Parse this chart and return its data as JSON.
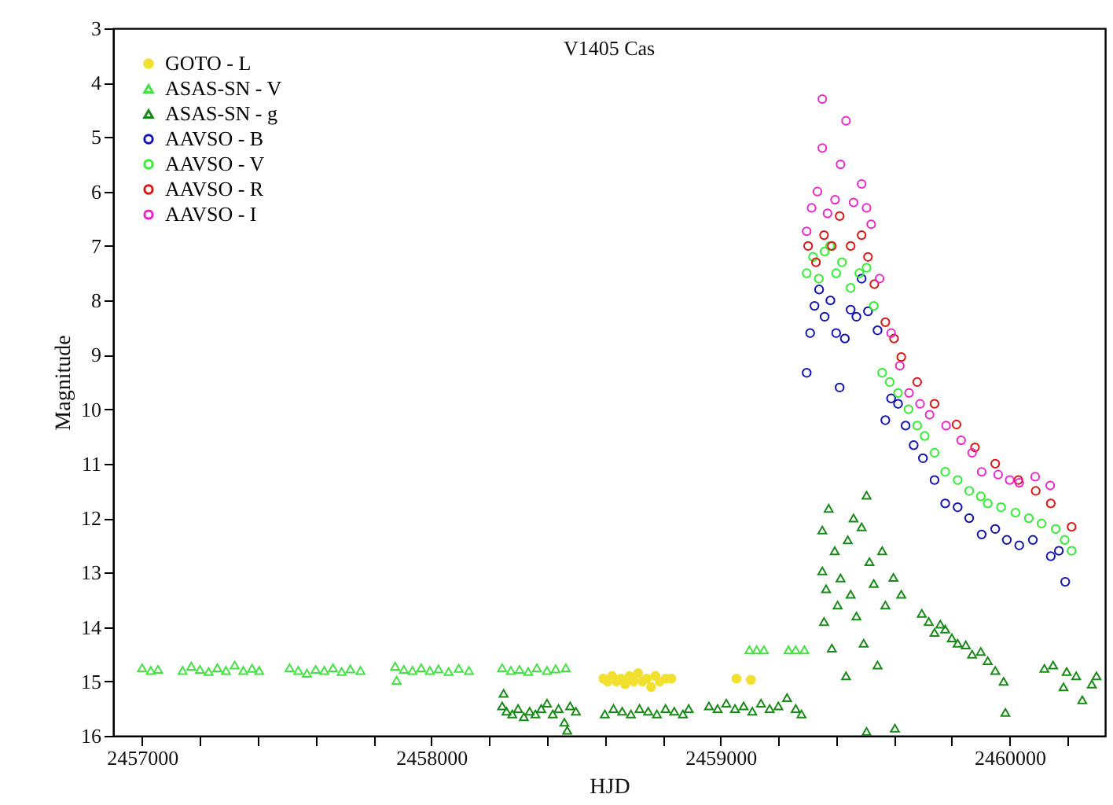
{
  "chart_data": {
    "type": "scatter",
    "title": "V1405 Cas",
    "xlabel": "HJD",
    "ylabel": "Magnitude",
    "xlim": [
      2456900,
      2460330
    ],
    "ylim": [
      16,
      3
    ],
    "xticks": [
      {
        "value": 2457000,
        "label": "2457000"
      },
      {
        "value": 2457200,
        "label": null
      },
      {
        "value": 2457400,
        "label": null
      },
      {
        "value": 2457600,
        "label": null
      },
      {
        "value": 2457800,
        "label": null
      },
      {
        "value": 2458000,
        "label": "2458000"
      },
      {
        "value": 2458200,
        "label": null
      },
      {
        "value": 2458400,
        "label": null
      },
      {
        "value": 2458600,
        "label": null
      },
      {
        "value": 2458800,
        "label": null
      },
      {
        "value": 2459000,
        "label": "2459000"
      },
      {
        "value": 2459200,
        "label": null
      },
      {
        "value": 2459400,
        "label": null
      },
      {
        "value": 2459600,
        "label": null
      },
      {
        "value": 2459800,
        "label": null
      },
      {
        "value": 2460000,
        "label": "2460000"
      },
      {
        "value": 2460200,
        "label": null
      }
    ],
    "yticks": [
      3,
      4,
      5,
      6,
      7,
      8,
      9,
      10,
      11,
      12,
      13,
      14,
      15,
      16
    ],
    "legend": "top left",
    "series": [
      {
        "name": "GOTO - L",
        "color": "#f2e030",
        "marker": "circle",
        "x": [
          2458595,
          2458610,
          2458625,
          2458640,
          2458655,
          2458670,
          2458685,
          2458700,
          2458715,
          2458730,
          2458745,
          2458760,
          2458775,
          2458790,
          2458810,
          2458830,
          2459055,
          2459105
        ],
        "values": [
          14.95,
          15.0,
          14.9,
          15.0,
          14.95,
          15.05,
          14.9,
          15.0,
          14.85,
          15.0,
          14.95,
          15.1,
          14.9,
          15.0,
          14.95,
          14.95,
          14.95,
          14.97
        ]
      },
      {
        "name": "ASAS-SN - V",
        "color": "#44e044",
        "marker": "triangle",
        "x": [
          2457000,
          2457030,
          2457055,
          2457140,
          2457170,
          2457200,
          2457230,
          2457260,
          2457290,
          2457320,
          2457350,
          2457380,
          2457405,
          2457510,
          2457540,
          2457570,
          2457600,
          2457630,
          2457660,
          2457690,
          2457720,
          2457755,
          2457875,
          2457880,
          2457905,
          2457935,
          2457965,
          2457995,
          2458025,
          2458060,
          2458095,
          2458130,
          2458245,
          2458275,
          2458305,
          2458335,
          2458365,
          2458400,
          2458430,
          2458465,
          2459100,
          2459125,
          2459150,
          2459235,
          2459260,
          2459290
        ],
        "values": [
          14.75,
          14.8,
          14.78,
          14.8,
          14.72,
          14.78,
          14.82,
          14.75,
          14.8,
          14.7,
          14.8,
          14.76,
          14.8,
          14.75,
          14.8,
          14.85,
          14.78,
          14.8,
          14.75,
          14.82,
          14.77,
          14.8,
          14.72,
          14.98,
          14.78,
          14.8,
          14.75,
          14.8,
          14.77,
          14.82,
          14.76,
          14.8,
          14.75,
          14.8,
          14.78,
          14.82,
          14.75,
          14.8,
          14.77,
          14.75,
          14.42,
          14.42,
          14.42,
          14.42,
          14.42,
          14.42
        ]
      },
      {
        "name": "ASAS-SN - g",
        "color": "#178a17",
        "marker": "triangle",
        "x": [
          2458245,
          2458250,
          2458260,
          2458280,
          2458300,
          2458320,
          2458340,
          2458360,
          2458380,
          2458400,
          2458420,
          2458440,
          2458460,
          2458470,
          2458480,
          2458500,
          2458600,
          2458630,
          2458660,
          2458690,
          2458720,
          2458750,
          2458780,
          2458810,
          2458840,
          2458870,
          2458890,
          2458960,
          2458990,
          2459020,
          2459050,
          2459080,
          2459110,
          2459140,
          2459170,
          2459200,
          2459230,
          2459260,
          2459280,
          2459352,
          2459352,
          2459358,
          2459365,
          2459374,
          2459385,
          2459395,
          2459405,
          2459415,
          2459434,
          2459440,
          2459450,
          2459460,
          2459470,
          2459488,
          2459495,
          2459505,
          2459505,
          2459515,
          2459530,
          2459543,
          2459559,
          2459570,
          2459598,
          2459603,
          2459625,
          2459696,
          2459720,
          2459740,
          2459760,
          2459777,
          2459800,
          2459820,
          2459848,
          2459870,
          2459900,
          2459924,
          2459950,
          2459979,
          2459985,
          2460120,
          2460150,
          2460186,
          2460197,
          2460230,
          2460251,
          2460284,
          2460300
        ],
        "values": [
          15.45,
          15.22,
          15.55,
          15.6,
          15.5,
          15.65,
          15.55,
          15.6,
          15.5,
          15.4,
          15.6,
          15.5,
          15.75,
          15.9,
          15.45,
          15.55,
          15.6,
          15.5,
          15.55,
          15.6,
          15.5,
          15.55,
          15.6,
          15.5,
          15.55,
          15.6,
          15.5,
          15.45,
          15.5,
          15.4,
          15.5,
          15.45,
          15.55,
          15.4,
          15.5,
          15.45,
          15.3,
          15.5,
          15.6,
          12.22,
          12.97,
          13.9,
          13.3,
          11.82,
          14.39,
          12.6,
          13.6,
          13.1,
          14.9,
          12.4,
          13.4,
          12.0,
          13.8,
          12.16,
          14.3,
          11.58,
          15.92,
          12.8,
          13.2,
          14.7,
          12.6,
          13.6,
          13.09,
          15.86,
          13.4,
          13.75,
          13.9,
          14.1,
          13.95,
          14.04,
          14.2,
          14.3,
          14.33,
          14.5,
          14.45,
          14.62,
          14.8,
          15.0,
          15.57,
          14.76,
          14.7,
          15.1,
          14.82,
          14.9,
          15.34,
          15.05,
          14.9
        ]
      },
      {
        "name": "AAVSO - B",
        "color": "#1414b4",
        "marker": "circle",
        "x": [
          2459298,
          2459310,
          2459325,
          2459341,
          2459360,
          2459380,
          2459400,
          2459412,
          2459430,
          2459450,
          2459470,
          2459488,
          2459510,
          2459543,
          2459570,
          2459590,
          2459614,
          2459640,
          2459668,
          2459700,
          2459740,
          2459777,
          2459820,
          2459860,
          2459903,
          2459950,
          2459990,
          2460033,
          2460080,
          2460142,
          2460170,
          2460192
        ],
        "values": [
          9.33,
          8.6,
          8.1,
          7.8,
          8.3,
          8.0,
          8.6,
          9.6,
          8.7,
          8.17,
          8.3,
          7.6,
          8.2,
          8.55,
          10.2,
          9.8,
          9.9,
          10.3,
          10.66,
          10.9,
          11.3,
          11.73,
          11.8,
          12.0,
          12.3,
          12.2,
          12.4,
          12.5,
          12.4,
          12.7,
          12.6,
          13.17
        ]
      },
      {
        "name": "AAVSO - V",
        "color": "#33ee33",
        "marker": "circle",
        "x": [
          2459298,
          2459320,
          2459340,
          2459360,
          2459379,
          2459400,
          2459420,
          2459450,
          2459480,
          2459505,
          2459530,
          2459559,
          2459585,
          2459614,
          2459650,
          2459680,
          2459706,
          2459740,
          2459777,
          2459820,
          2459860,
          2459900,
          2459924,
          2459970,
          2460020,
          2460066,
          2460110,
          2460159,
          2460190,
          2460214
        ],
        "values": [
          7.5,
          7.2,
          7.6,
          7.1,
          7.0,
          7.5,
          7.3,
          7.77,
          7.5,
          7.4,
          8.1,
          9.33,
          9.5,
          9.7,
          10.0,
          10.3,
          10.49,
          10.8,
          11.15,
          11.3,
          11.5,
          11.6,
          11.73,
          11.8,
          11.9,
          12.0,
          12.1,
          12.2,
          12.4,
          12.6
        ]
      },
      {
        "name": "AAVSO - R",
        "color": "#dd1515",
        "marker": "circle",
        "x": [
          2459303,
          2459330,
          2459358,
          2459385,
          2459412,
          2459450,
          2459488,
          2459510,
          2459532,
          2459570,
          2459600,
          2459625,
          2459680,
          2459740,
          2459816,
          2459880,
          2459950,
          2460030,
          2460090,
          2460142,
          2460214
        ],
        "values": [
          7.0,
          7.3,
          6.8,
          7.0,
          6.45,
          7.0,
          6.8,
          7.2,
          7.7,
          8.4,
          8.7,
          9.04,
          9.5,
          9.9,
          10.28,
          10.7,
          11.0,
          11.3,
          11.5,
          11.73,
          12.16
        ]
      },
      {
        "name": "AAVSO - I",
        "color": "#ee22cc",
        "marker": "circle",
        "x": [
          2459298,
          2459315,
          2459335,
          2459352,
          2459352,
          2459370,
          2459396,
          2459415,
          2459434,
          2459460,
          2459488,
          2459505,
          2459521,
          2459550,
          2459590,
          2459620,
          2459652,
          2459690,
          2459723,
          2459780,
          2459832,
          2459870,
          2459903,
          2459960,
          2460000,
          2460033,
          2460088,
          2460140
        ],
        "values": [
          6.73,
          6.3,
          6.0,
          4.3,
          5.2,
          6.4,
          6.15,
          5.5,
          4.7,
          6.2,
          5.86,
          6.3,
          6.6,
          7.6,
          8.6,
          9.2,
          9.7,
          9.9,
          10.1,
          10.3,
          10.57,
          10.8,
          11.15,
          11.2,
          11.3,
          11.35,
          11.24,
          11.4
        ]
      }
    ]
  }
}
